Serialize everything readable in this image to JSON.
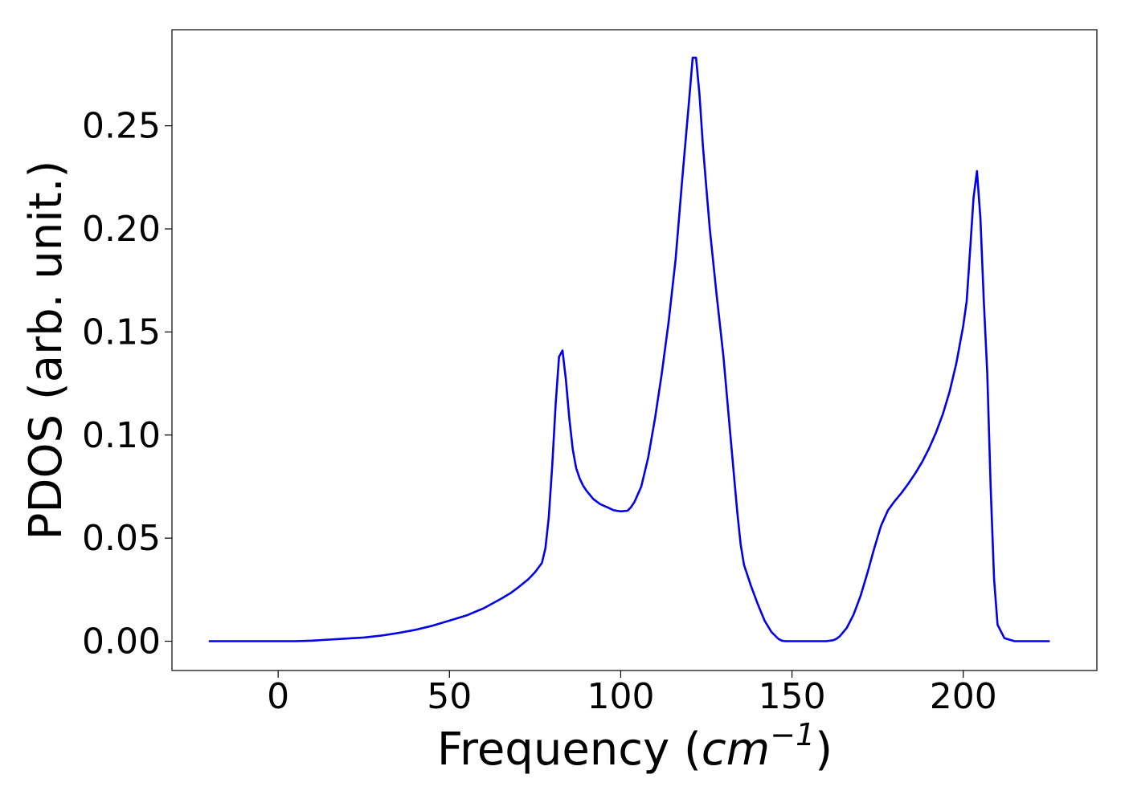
{
  "chart_data": {
    "type": "line",
    "xlabel": "Frequency",
    "xlabel_unit_base": "cm",
    "xlabel_unit_exp": "−1",
    "ylabel": "PDOS (arb. unit.)",
    "xlim": [
      -31,
      239
    ],
    "ylim": [
      -0.0142,
      0.2966
    ],
    "xticks": [
      0,
      50,
      100,
      150,
      200
    ],
    "xtick_labels": [
      "0",
      "50",
      "100",
      "150",
      "200"
    ],
    "yticks": [
      0.0,
      0.05,
      0.1,
      0.15,
      0.2,
      0.25
    ],
    "ytick_labels": [
      "0.00",
      "0.05",
      "0.10",
      "0.15",
      "0.20",
      "0.25"
    ],
    "grid": false,
    "series": [
      {
        "color": "#0000ee",
        "x": [
          -20,
          0,
          5,
          10,
          15,
          20,
          25,
          30,
          35,
          40,
          45,
          50,
          55,
          60,
          65,
          68,
          70,
          73,
          75,
          77,
          78,
          79,
          80,
          81,
          82,
          83,
          84,
          85,
          86,
          87,
          88,
          89,
          90,
          92,
          94,
          96,
          98,
          100,
          102,
          103,
          104,
          106,
          108,
          110,
          112,
          114,
          116,
          118,
          120,
          121,
          122,
          123,
          124,
          125,
          126,
          128,
          130,
          132,
          134,
          135,
          136,
          138,
          140,
          142,
          144,
          146,
          147,
          148,
          150,
          160,
          162,
          163,
          164,
          166,
          168,
          170,
          172,
          174,
          176,
          178,
          180,
          182,
          184,
          186,
          188,
          190,
          192,
          194,
          196,
          198,
          200,
          201,
          202,
          203,
          204,
          205,
          206,
          207,
          208,
          209,
          210,
          212,
          215,
          225
        ],
        "y": [
          0,
          0,
          0,
          0.0003,
          0.0008,
          0.0013,
          0.0018,
          0.0027,
          0.004,
          0.0055,
          0.0075,
          0.01,
          0.0125,
          0.016,
          0.0205,
          0.0235,
          0.026,
          0.03,
          0.0335,
          0.038,
          0.045,
          0.06,
          0.085,
          0.115,
          0.138,
          0.141,
          0.127,
          0.108,
          0.093,
          0.084,
          0.079,
          0.0755,
          0.073,
          0.069,
          0.0665,
          0.065,
          0.0635,
          0.063,
          0.0633,
          0.065,
          0.0675,
          0.075,
          0.089,
          0.108,
          0.13,
          0.155,
          0.185,
          0.225,
          0.263,
          0.283,
          0.283,
          0.265,
          0.24,
          0.22,
          0.2,
          0.168,
          0.138,
          0.1,
          0.063,
          0.047,
          0.037,
          0.027,
          0.018,
          0.01,
          0.0045,
          0.0012,
          0.0003,
          0,
          0,
          0,
          0.0005,
          0.0012,
          0.0025,
          0.0065,
          0.013,
          0.022,
          0.033,
          0.045,
          0.056,
          0.0635,
          0.068,
          0.072,
          0.0765,
          0.0815,
          0.087,
          0.0935,
          0.101,
          0.11,
          0.121,
          0.135,
          0.153,
          0.165,
          0.19,
          0.215,
          0.228,
          0.205,
          0.165,
          0.13,
          0.075,
          0.03,
          0.008,
          0.0015,
          0,
          0
        ]
      }
    ]
  }
}
